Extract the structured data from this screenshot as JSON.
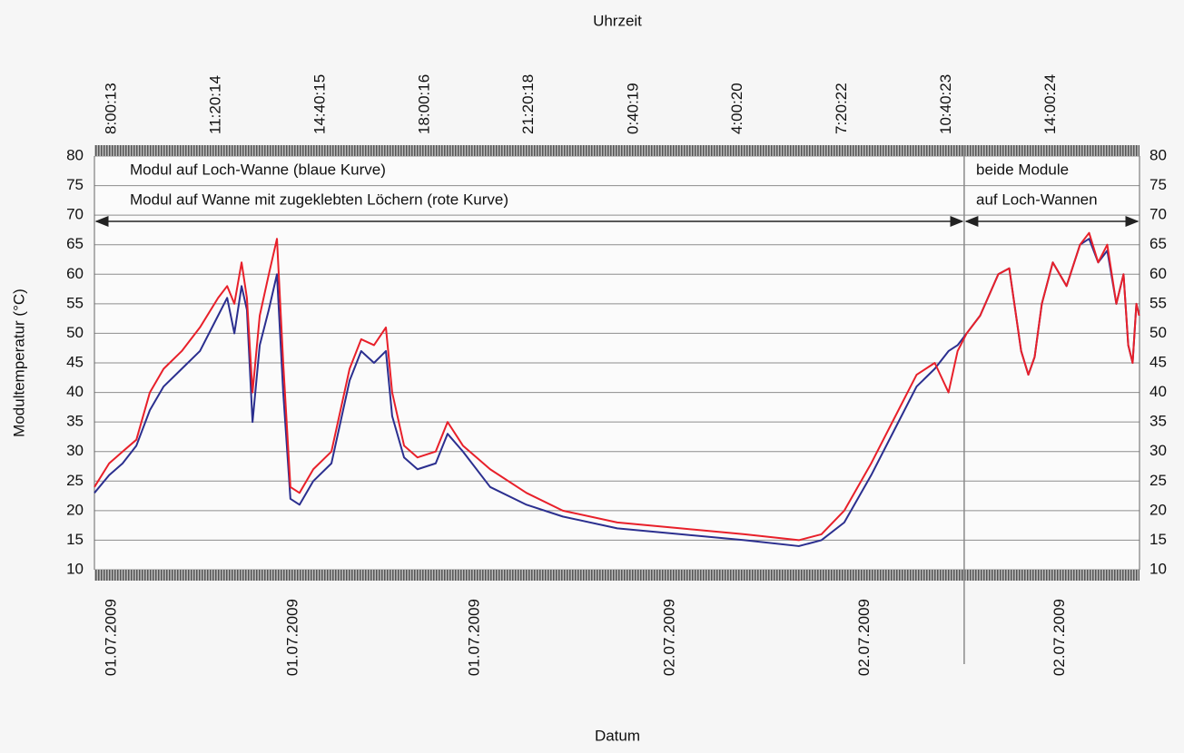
{
  "chart_data": {
    "type": "line",
    "xlabel_top": "Uhrzeit",
    "xlabel_bottom": "Datum",
    "ylabel": "Modultemperatur (°C)",
    "annotations": [
      "beide Module",
      "auf Loch-Wannen"
    ],
    "divider_x": 27.4,
    "x": [
      -0.38,
      0.09,
      0.52,
      0.96,
      1.39,
      1.83,
      2.41,
      2.99,
      3.57,
      3.86,
      4.09,
      4.32,
      4.49,
      4.67,
      4.9,
      5.19,
      5.45,
      5.65,
      5.88,
      6.17,
      6.61,
      7.19,
      7.77,
      8.14,
      8.55,
      8.93,
      9.13,
      9.51,
      9.94,
      10.52,
      10.9,
      11.39,
      12.26,
      13.42,
      14.58,
      16.32,
      18.35,
      20.38,
      22.12,
      22.84,
      23.57,
      24.43,
      25.3,
      25.88,
      26.46,
      26.9,
      27.19,
      27.48,
      27.91,
      28.49,
      28.84,
      29.22,
      29.45,
      29.65,
      29.88,
      30.23,
      30.67,
      31.1,
      31.39,
      31.68,
      31.97,
      32.26,
      32.49,
      32.64,
      32.78,
      32.9,
      32.99
    ],
    "series": [
      {
        "name": "Modul auf Loch-Wanne (blaue Kurve)",
        "color": "#2b2f8f",
        "values": [
          23,
          26,
          28,
          31,
          37,
          41,
          44,
          47,
          53,
          56,
          50,
          58,
          54,
          35,
          48,
          54,
          60,
          40,
          22,
          21,
          25,
          28,
          42,
          47,
          45,
          47,
          36,
          29,
          27,
          28,
          33,
          30,
          24,
          21,
          19,
          17,
          16,
          15,
          14,
          15,
          18,
          26,
          35,
          41,
          44,
          47,
          48,
          50,
          53,
          60,
          61,
          47,
          43,
          46,
          55,
          62,
          58,
          65,
          66,
          62,
          64,
          55,
          60,
          48,
          45,
          55,
          53
        ]
      },
      {
        "name": "Modul auf Wanne mit zugeklebten Löchern (rote Kurve)",
        "color": "#e8202a",
        "values": [
          24,
          28,
          30,
          32,
          40,
          44,
          47,
          51,
          56,
          58,
          55,
          62,
          56,
          40,
          53,
          60,
          66,
          45,
          24,
          23,
          27,
          30,
          44,
          49,
          48,
          51,
          40,
          31,
          29,
          30,
          35,
          31,
          27,
          23,
          20,
          18,
          17,
          16,
          15,
          16,
          20,
          28,
          37,
          43,
          45,
          40,
          47,
          50,
          53,
          60,
          61,
          47,
          43,
          46,
          55,
          62,
          58,
          65,
          67,
          62,
          65,
          55,
          60,
          48,
          45,
          55,
          53
        ]
      }
    ],
    "xlim": [
      -0.38,
      33
    ],
    "xticks": [
      {
        "value": 0,
        "label": "8:00:13"
      },
      {
        "value": 3.33,
        "label": "11:20:14"
      },
      {
        "value": 6.67,
        "label": "14:40:15"
      },
      {
        "value": 10,
        "label": "18:00:16"
      },
      {
        "value": 13.33,
        "label": "21:20:18"
      },
      {
        "value": 16.67,
        "label": "0:40:19"
      },
      {
        "value": 20,
        "label": "4:00:20"
      },
      {
        "value": 23.33,
        "label": "7:20:22"
      },
      {
        "value": 26.67,
        "label": "10:40:23"
      },
      {
        "value": 30,
        "label": "14:00:24"
      }
    ],
    "date_ticks": [
      {
        "value": 0,
        "label": "01.07.2009"
      },
      {
        "value": 5.8,
        "label": "01.07.2009"
      },
      {
        "value": 11.6,
        "label": "01.07.2009"
      },
      {
        "value": 17.83,
        "label": "02.07.2009"
      },
      {
        "value": 24.06,
        "label": "02.07.2009"
      },
      {
        "value": 30.29,
        "label": "02.07.2009"
      }
    ],
    "ylim": [
      10,
      80
    ],
    "yticks": [
      10,
      15,
      20,
      25,
      30,
      35,
      40,
      45,
      50,
      55,
      60,
      65,
      70,
      75,
      80
    ],
    "grid": true
  }
}
